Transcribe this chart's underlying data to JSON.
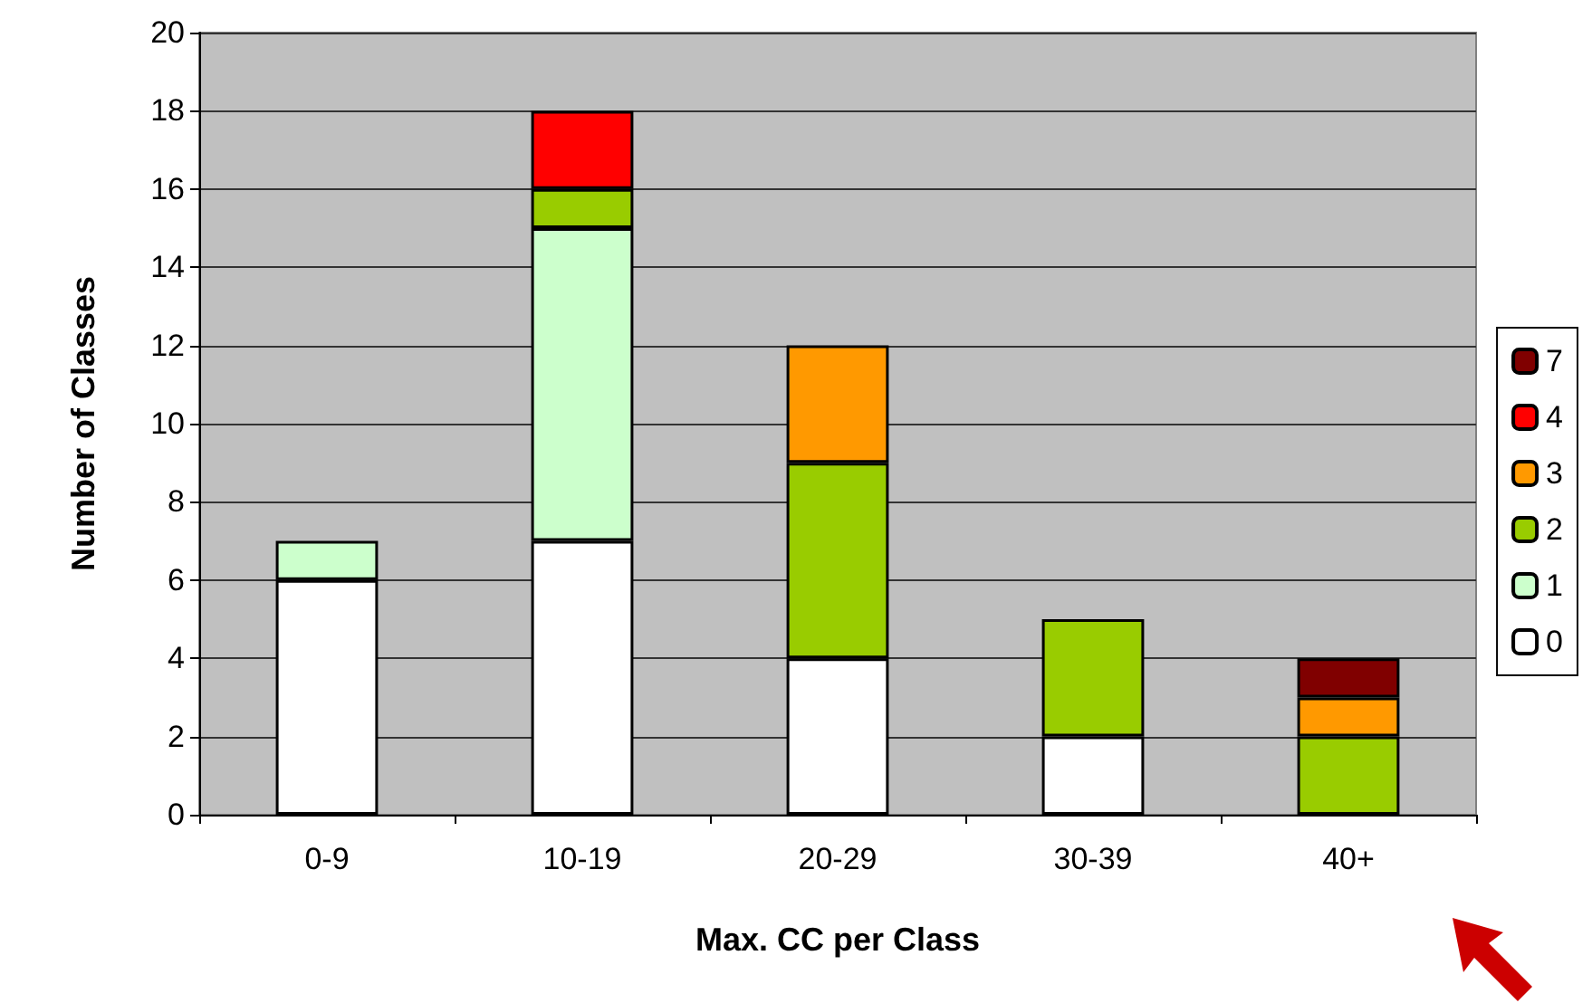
{
  "chart_data": {
    "type": "bar",
    "stacked": true,
    "xlabel": "Max. CC per Class",
    "ylabel": "Number of Classes",
    "categories": [
      "0-9",
      "10-19",
      "20-29",
      "30-39",
      "40+"
    ],
    "series": [
      {
        "name": "0",
        "color": "#ffffff",
        "values": [
          6,
          7,
          4,
          2,
          null
        ]
      },
      {
        "name": "1",
        "color": "#ccffcc",
        "values": [
          1,
          8,
          null,
          null,
          null
        ]
      },
      {
        "name": "2",
        "color": "#99cc00",
        "values": [
          null,
          1,
          5,
          3,
          2
        ]
      },
      {
        "name": "3",
        "color": "#ff9900",
        "values": [
          null,
          null,
          3,
          null,
          1
        ]
      },
      {
        "name": "4",
        "color": "#ff0000",
        "values": [
          null,
          2,
          null,
          null,
          null
        ]
      },
      {
        "name": "7",
        "color": "#800000",
        "values": [
          null,
          null,
          null,
          null,
          1
        ]
      }
    ],
    "ylim": [
      0,
      20
    ],
    "yticks": [
      0,
      2,
      4,
      6,
      8,
      10,
      12,
      14,
      16,
      18,
      20
    ],
    "grid": "y",
    "legend": "right"
  }
}
